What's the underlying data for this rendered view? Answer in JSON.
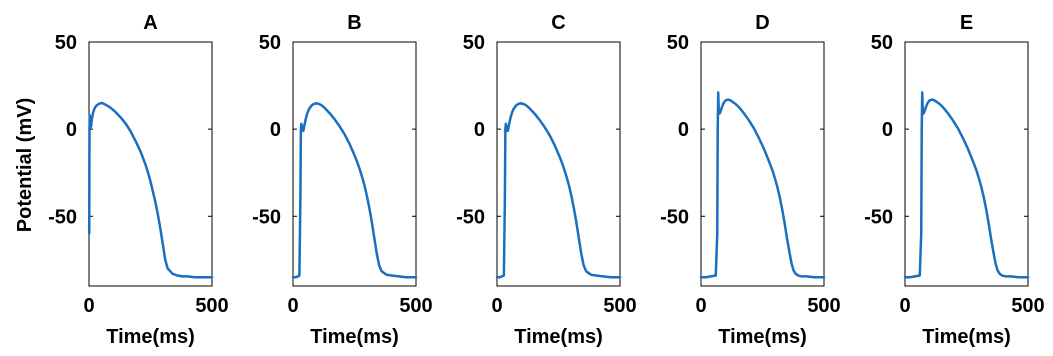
{
  "figure": {
    "ylabel": "Potential (mV)",
    "line_color": "#1a6fc0"
  },
  "chart_data": [
    {
      "type": "line",
      "title": "A",
      "xlabel": "Time(ms)",
      "ylabel": "Potential (mV)",
      "xlim": [
        0,
        500
      ],
      "ylim": [
        -90,
        50
      ],
      "xticks": [
        "0",
        "500"
      ],
      "yticks": [
        "50",
        "0",
        "-50"
      ],
      "grid": false,
      "series": [
        {
          "x": [
            1,
            1.5,
            2,
            3,
            4,
            5,
            7,
            9,
            12,
            16,
            20,
            25,
            30,
            40,
            50,
            60,
            70,
            80,
            90,
            110,
            130,
            150,
            170,
            190,
            210,
            230,
            240,
            250,
            260,
            270,
            280,
            290,
            300,
            310,
            320,
            340,
            360,
            380,
            400,
            430,
            460,
            500
          ],
          "y": [
            -60,
            -20,
            0,
            8,
            5,
            3,
            1,
            2,
            6,
            9,
            11,
            12.5,
            13.5,
            14.5,
            15,
            14.6,
            13.8,
            13,
            12,
            9.5,
            6.5,
            3,
            -1.5,
            -7,
            -13,
            -20.5,
            -25,
            -30,
            -36,
            -42,
            -49,
            -57,
            -66,
            -75,
            -80,
            -83,
            -84,
            -84.5,
            -84.5,
            -85,
            -85,
            -85
          ]
        }
      ]
    },
    {
      "type": "line",
      "title": "B",
      "xlabel": "Time(ms)",
      "ylabel": "",
      "xlim": [
        0,
        500
      ],
      "ylim": [
        -90,
        50
      ],
      "xticks": [
        "0",
        "500"
      ],
      "yticks": [
        "50",
        "0",
        "-50"
      ],
      "grid": false,
      "series": [
        {
          "x": [
            0,
            10,
            20,
            26,
            30,
            32,
            34,
            38,
            42,
            46,
            52,
            58,
            65,
            75,
            85,
            95,
            105,
            115,
            130,
            150,
            170,
            190,
            210,
            230,
            250,
            260,
            270,
            280,
            290,
            300,
            310,
            320,
            330,
            340,
            350,
            360,
            380,
            400,
            430,
            460,
            500
          ],
          "y": [
            -85,
            -85,
            -84.5,
            -84,
            -40,
            0,
            3,
            0,
            -1,
            2,
            6,
            9,
            11.5,
            13.5,
            14.5,
            14.8,
            14.5,
            13.8,
            12,
            9,
            5.5,
            1.5,
            -3,
            -8.5,
            -15,
            -18.5,
            -22.5,
            -27,
            -32,
            -38,
            -45,
            -53,
            -62,
            -71,
            -78,
            -81.5,
            -83.5,
            -84,
            -84.5,
            -85,
            -85
          ]
        }
      ]
    },
    {
      "type": "line",
      "title": "C",
      "xlabel": "Time(ms)",
      "ylabel": "",
      "xlim": [
        0,
        500
      ],
      "ylim": [
        -90,
        50
      ],
      "xticks": [
        "0",
        "500"
      ],
      "yticks": [
        "50",
        "0",
        "-50"
      ],
      "grid": false,
      "series": [
        {
          "x": [
            0,
            10,
            20,
            28,
            32,
            34,
            36,
            40,
            44,
            48,
            54,
            60,
            67,
            77,
            87,
            97,
            107,
            117,
            132,
            152,
            172,
            192,
            212,
            232,
            252,
            262,
            272,
            282,
            292,
            302,
            312,
            322,
            332,
            342,
            352,
            362,
            382,
            402,
            432,
            462,
            500
          ],
          "y": [
            -85,
            -85,
            -84.5,
            -84,
            -40,
            0,
            3,
            0,
            -1,
            2,
            6,
            9,
            11.5,
            13.5,
            14.5,
            14.8,
            14.5,
            13.8,
            12,
            9,
            5.5,
            1.5,
            -3,
            -8.5,
            -15,
            -18.5,
            -22.5,
            -27,
            -32,
            -38,
            -45,
            -53,
            -62,
            -71,
            -78,
            -81.5,
            -83.5,
            -84,
            -84.5,
            -85,
            -85
          ]
        }
      ]
    },
    {
      "type": "line",
      "title": "D",
      "xlabel": "Time(ms)",
      "ylabel": "",
      "xlim": [
        0,
        500
      ],
      "ylim": [
        -90,
        50
      ],
      "xticks": [
        "0",
        "500"
      ],
      "yticks": [
        "50",
        "0",
        "-50"
      ],
      "grid": false,
      "series": [
        {
          "x": [
            0,
            20,
            40,
            60,
            66,
            68,
            70,
            72,
            76,
            80,
            86,
            92,
            100,
            110,
            120,
            130,
            140,
            155,
            175,
            195,
            215,
            235,
            255,
            275,
            290,
            300,
            310,
            320,
            330,
            340,
            350,
            360,
            368,
            376,
            385,
            395,
            410,
            430,
            460,
            500
          ],
          "y": [
            -85,
            -85,
            -84.5,
            -84,
            -60,
            0,
            21,
            12,
            9,
            10.5,
            13,
            15,
            16.5,
            17,
            16.5,
            15.5,
            14.5,
            12.5,
            9,
            5,
            0.5,
            -5,
            -11,
            -18,
            -23.5,
            -28,
            -33,
            -39,
            -46,
            -54,
            -63,
            -71,
            -77,
            -81,
            -83,
            -84,
            -84.5,
            -84.5,
            -85,
            -85
          ]
        }
      ]
    },
    {
      "type": "line",
      "title": "E",
      "xlabel": "Time(ms)",
      "ylabel": "",
      "xlim": [
        0,
        500
      ],
      "ylim": [
        -90,
        50
      ],
      "xticks": [
        "0",
        "500"
      ],
      "yticks": [
        "50",
        "0",
        "-50"
      ],
      "grid": false,
      "series": [
        {
          "x": [
            0,
            20,
            40,
            60,
            66,
            68,
            70,
            72,
            76,
            80,
            86,
            92,
            100,
            110,
            120,
            130,
            140,
            155,
            175,
            195,
            215,
            235,
            255,
            275,
            290,
            300,
            310,
            320,
            330,
            340,
            350,
            360,
            368,
            376,
            385,
            395,
            410,
            430,
            460,
            500
          ],
          "y": [
            -85,
            -85,
            -84.5,
            -84,
            -60,
            0,
            21,
            12,
            9,
            10.5,
            13,
            15,
            16.5,
            17,
            16.5,
            15.5,
            14.5,
            12.5,
            9,
            5,
            0.5,
            -5,
            -11,
            -18,
            -23.5,
            -28,
            -33,
            -39,
            -46,
            -54,
            -63,
            -71,
            -77,
            -81,
            -83,
            -84,
            -84.5,
            -84.5,
            -85,
            -85
          ]
        }
      ]
    }
  ]
}
